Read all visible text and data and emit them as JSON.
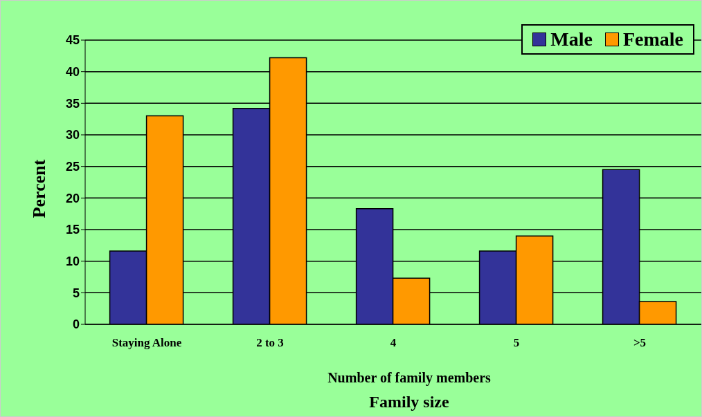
{
  "chart_data": {
    "type": "bar",
    "xlabel": "Number of family members",
    "ylabel": "Percent",
    "annotations": [
      "Family size"
    ],
    "categories": [
      "Staying Alone",
      "2 to 3",
      "4",
      "5",
      ">5"
    ],
    "series": [
      {
        "name": "Male",
        "color": "#333399",
        "values": [
          11.6,
          34.2,
          18.3,
          11.6,
          24.5
        ]
      },
      {
        "name": "Female",
        "color": "#ff9900",
        "values": [
          33,
          42.2,
          7.3,
          14,
          3.6
        ]
      }
    ],
    "ylim": [
      0,
      45
    ],
    "yticks": [
      0,
      5,
      10,
      15,
      20,
      25,
      30,
      35,
      40,
      45
    ],
    "grid": "y",
    "legend": "top right"
  }
}
